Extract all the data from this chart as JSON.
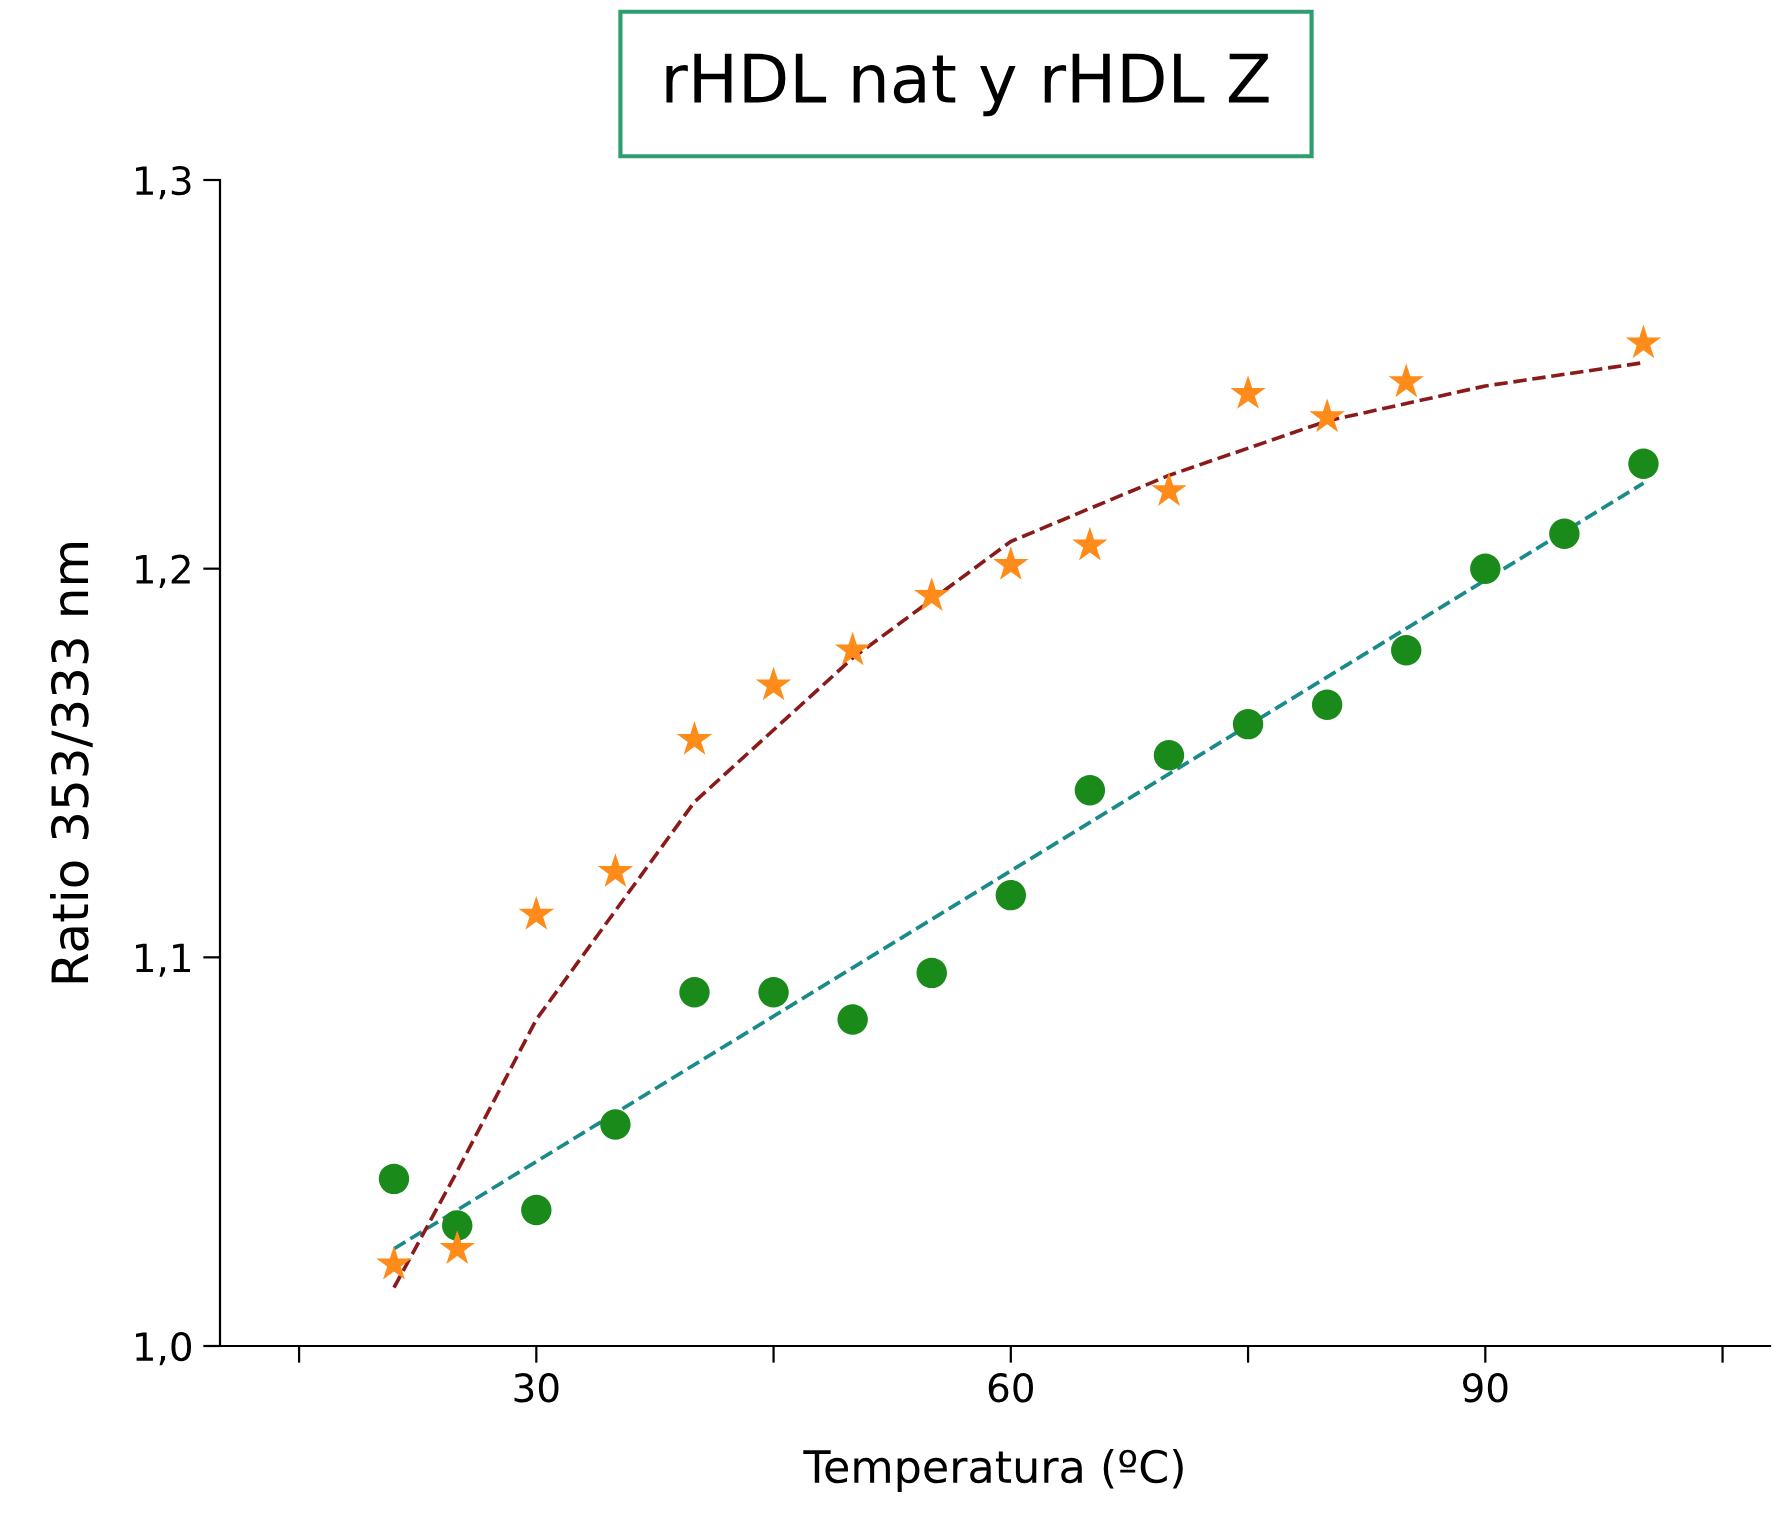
{
  "chart_data": {
    "type": "scatter",
    "title": "rHDL nat y rHDL Z",
    "xlabel": "Temperatura (ºC)",
    "ylabel": "Ratio 353/333 nm",
    "series": [
      {
        "marker": "circle",
        "color": "#1a8a1a",
        "x": [
          21,
          25,
          30,
          35,
          40,
          45,
          50,
          55,
          60,
          65,
          70,
          75,
          80,
          85,
          90,
          95,
          100
        ],
        "values": [
          1.043,
          1.031,
          1.035,
          1.057,
          1.091,
          1.091,
          1.084,
          1.096,
          1.116,
          1.143,
          1.152,
          1.16,
          1.165,
          1.179,
          1.2,
          1.209,
          1.227
        ]
      },
      {
        "marker": "star",
        "color": "#ff8c1a",
        "x": [
          21,
          25,
          30,
          35,
          40,
          45,
          50,
          55,
          60,
          65,
          70,
          75,
          80,
          85,
          100
        ],
        "values": [
          1.021,
          1.025,
          1.111,
          1.122,
          1.156,
          1.17,
          1.179,
          1.193,
          1.201,
          1.206,
          1.22,
          1.245,
          1.239,
          1.248,
          1.258
        ]
      },
      {
        "type": "line",
        "line_style": "dashed",
        "color": "#1a8a8a",
        "x": [
          21,
          100
        ],
        "values": [
          1.025,
          1.222
        ]
      },
      {
        "type": "line",
        "line_style": "dashed",
        "color": "#8b1a1a",
        "x": [
          21,
          25,
          30,
          35,
          40,
          50,
          60,
          70,
          80,
          90,
          100
        ],
        "values": [
          1.015,
          1.045,
          1.084,
          1.112,
          1.14,
          1.177,
          1.207,
          1.224,
          1.238,
          1.247,
          1.253
        ]
      }
    ],
    "xlim": [
      10,
      108
    ],
    "xticks": [
      {
        "value": 15,
        "label": null
      },
      30,
      {
        "value": 45,
        "label": null
      },
      60,
      {
        "value": 75,
        "label": null
      },
      90,
      {
        "value": 105,
        "label": null
      }
    ],
    "ylim": [
      1.0,
      1.3
    ],
    "yticks": [
      {
        "value": 1.0,
        "label": "1,0"
      },
      {
        "value": 1.1,
        "label": "1,1"
      },
      {
        "value": 1.2,
        "label": "1,2"
      },
      {
        "value": 1.3,
        "label": "1,3"
      }
    ],
    "grid": false
  }
}
